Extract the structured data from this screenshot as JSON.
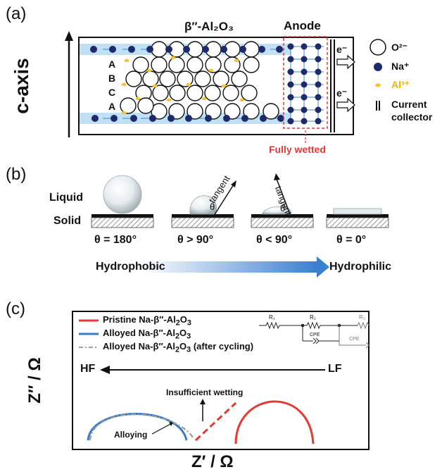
{
  "panel_a": {
    "label": "(a)",
    "axis_label": "c-axis",
    "electrolyte_label": "β″-Al₂O₃",
    "anode_label": "Anode",
    "stacking": [
      "A",
      "B",
      "C",
      "A"
    ],
    "electron_label": "e⁻",
    "fully_wetted": "Fully wetted",
    "legend": {
      "oxygen": "O²⁻",
      "sodium": "Na⁺",
      "aluminum": "Al³⁺",
      "collector_line1": "Current",
      "collector_line2": "collector"
    },
    "colors": {
      "sodium": "#1f2a6b",
      "aluminum": "#f4c431",
      "channel": "#bfe0f5",
      "wetted": "#e23b3b"
    }
  },
  "panel_b": {
    "label": "(b)",
    "liquid_label": "Liquid",
    "solid_label": "Solid",
    "tangent_label": "tangent",
    "theta_symbol": "θ",
    "angles": [
      "θ = 180°",
      "θ > 90°",
      "θ < 90°",
      "θ = 0°"
    ],
    "hydrophobic": "Hydrophobic",
    "hydrophilic": "Hydrophilic",
    "colors": {
      "arrow": "#3b7fd0"
    }
  },
  "panel_c": {
    "label": "(c)",
    "legend": [
      {
        "pre": "Pristine Na-β″-Al",
        "sub1": "2",
        "mid": "O",
        "sub2": "3",
        "post": "",
        "color": "#e53935",
        "style": "solid"
      },
      {
        "pre": "Alloyed Na-β″-Al",
        "sub1": "2",
        "mid": "O",
        "sub2": "3",
        "post": "",
        "color": "#3a7cc4",
        "style": "solid"
      },
      {
        "pre": "Alloyed Na-β″-Al",
        "sub1": "2",
        "mid": "O",
        "sub2": "3",
        "post": " (after cycling)",
        "color": "#9e9e9e",
        "style": "dashdot"
      }
    ],
    "circuit": {
      "r1": "R₁",
      "r2": "R₂",
      "r3": "R₃",
      "cpe": "CPE"
    },
    "hf": "HF",
    "lf": "LF",
    "insufficient_wetting": "Insufficient wetting",
    "alloying": "Alloying",
    "y_label": "Z″ / Ω",
    "x_label": "Z′ / Ω"
  }
}
